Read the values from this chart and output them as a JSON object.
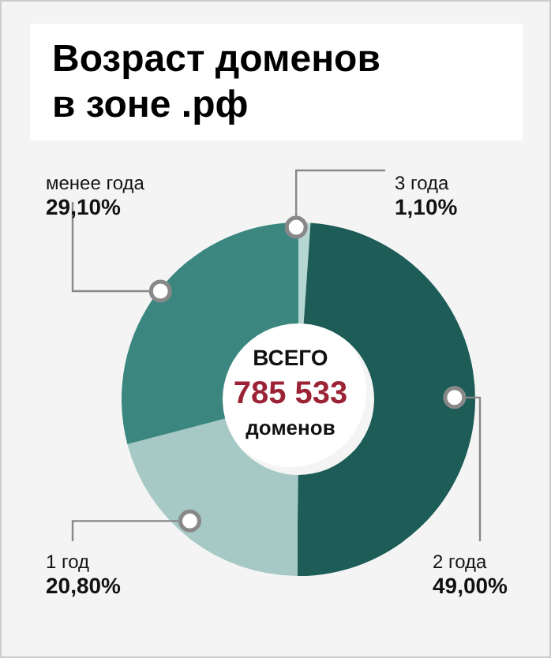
{
  "chart_data": {
    "type": "donut",
    "title": "Возраст доменов в зоне .рф",
    "categories": [
      "3 года",
      "2 года",
      "1 год",
      "менее года"
    ],
    "values": [
      1.1,
      49.0,
      20.8,
      29.1
    ],
    "value_labels": [
      "1,10%",
      "49,00%",
      "20,80%",
      "29,10%"
    ],
    "colors": [
      "#b5d6d1",
      "#1d5c57",
      "#a6c9c6",
      "#3b8780"
    ],
    "annotations": [
      "ВСЕГО",
      "785 533",
      "доменов"
    ],
    "legend": false
  }
}
